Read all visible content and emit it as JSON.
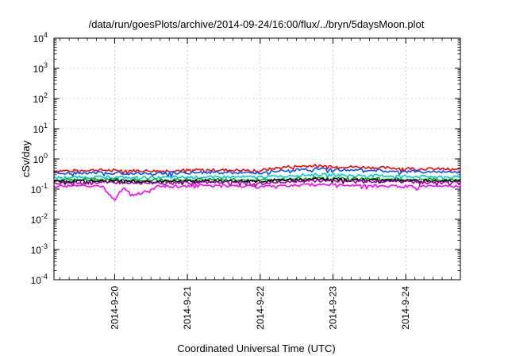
{
  "chart_data": {
    "type": "line",
    "title": "/data/run/goesPlots/archive/2014-09-24/16:00/flux/../bryn/5daysMoon.plot",
    "xlabel": "Coordinated Universal Time (UTC)",
    "ylabel": "cSv/day",
    "yscale": "log",
    "ylim": [
      0.0001,
      10000
    ],
    "xlim": [
      "2014-09-19 04:00",
      "2014-09-24 18:00"
    ],
    "grid": true,
    "x_ticks": [
      "2014-9-20",
      "2014-9-21",
      "2014-9-22",
      "2014-9-23",
      "2014-9-24"
    ],
    "y_ticks": [
      {
        "base": "10",
        "exp": "-4"
      },
      {
        "base": "10",
        "exp": "-3"
      },
      {
        "base": "10",
        "exp": "-2"
      },
      {
        "base": "10",
        "exp": "-1"
      },
      {
        "base": "10",
        "exp": "0"
      },
      {
        "base": "10",
        "exp": "1"
      },
      {
        "base": "10",
        "exp": "2"
      },
      {
        "base": "10",
        "exp": "3"
      },
      {
        "base": "10",
        "exp": "4"
      }
    ],
    "series": [
      {
        "color": "#ff0000",
        "x": [
          "2014-09-19 04:00",
          "2014-09-19 18:00",
          "2014-09-20 12:00",
          "2014-09-21 06:00",
          "2014-09-22 00:00",
          "2014-09-22 09:00",
          "2014-09-22 18:00",
          "2014-09-23 12:00",
          "2014-09-24 06:00",
          "2014-09-24 18:00"
        ],
        "y": [
          0.4,
          0.43,
          0.4,
          0.43,
          0.42,
          0.55,
          0.6,
          0.52,
          0.47,
          0.45
        ]
      },
      {
        "color": "#0055ff",
        "x": [
          "2014-09-19 04:00",
          "2014-09-19 18:00",
          "2014-09-20 12:00",
          "2014-09-21 06:00",
          "2014-09-22 00:00",
          "2014-09-22 09:00",
          "2014-09-22 18:00",
          "2014-09-23 12:00",
          "2014-09-24 06:00",
          "2014-09-24 18:00"
        ],
        "y": [
          0.33,
          0.35,
          0.33,
          0.36,
          0.35,
          0.42,
          0.46,
          0.42,
          0.38,
          0.36
        ]
      },
      {
        "color": "#00cccc",
        "x": [
          "2014-09-19 04:00",
          "2014-09-19 18:00",
          "2014-09-20 12:00",
          "2014-09-21 06:00",
          "2014-09-22 00:00",
          "2014-09-22 09:00",
          "2014-09-22 18:00",
          "2014-09-23 12:00",
          "2014-09-24 06:00",
          "2014-09-24 18:00"
        ],
        "y": [
          0.24,
          0.25,
          0.24,
          0.25,
          0.25,
          0.28,
          0.3,
          0.28,
          0.26,
          0.25
        ]
      },
      {
        "color": "#00aa00",
        "x": [
          "2014-09-19 04:00",
          "2014-09-19 18:00",
          "2014-09-20 12:00",
          "2014-09-21 06:00",
          "2014-09-22 00:00",
          "2014-09-22 09:00",
          "2014-09-22 18:00",
          "2014-09-23 12:00",
          "2014-09-24 06:00",
          "2014-09-24 18:00"
        ],
        "y": [
          0.2,
          0.21,
          0.2,
          0.21,
          0.2,
          0.22,
          0.23,
          0.22,
          0.21,
          0.2
        ]
      },
      {
        "color": "#000000",
        "x": [
          "2014-09-19 04:00",
          "2014-09-19 18:00",
          "2014-09-20 12:00",
          "2014-09-21 06:00",
          "2014-09-22 00:00",
          "2014-09-22 09:00",
          "2014-09-22 18:00",
          "2014-09-23 12:00",
          "2014-09-24 06:00",
          "2014-09-24 18:00"
        ],
        "y": [
          0.18,
          0.19,
          0.18,
          0.19,
          0.18,
          0.2,
          0.21,
          0.2,
          0.19,
          0.18
        ]
      },
      {
        "color": "#aa00aa",
        "x": [
          "2014-09-19 04:00",
          "2014-09-19 18:00",
          "2014-09-20 12:00",
          "2014-09-21 06:00",
          "2014-09-22 00:00",
          "2014-09-22 09:00",
          "2014-09-22 18:00",
          "2014-09-23 12:00",
          "2014-09-24 06:00",
          "2014-09-24 18:00"
        ],
        "y": [
          0.16,
          0.17,
          0.16,
          0.17,
          0.16,
          0.18,
          0.19,
          0.18,
          0.17,
          0.16
        ]
      },
      {
        "color": "#ff00ff",
        "x": [
          "2014-09-19 04:00",
          "2014-09-19 12:00",
          "2014-09-19 20:00",
          "2014-09-20 00:00",
          "2014-09-20 03:00",
          "2014-09-20 06:00",
          "2014-09-20 14:00",
          "2014-09-21 06:00",
          "2014-09-22 00:00",
          "2014-09-22 18:00",
          "2014-09-23 12:00",
          "2014-09-24 06:00",
          "2014-09-24 18:00"
        ],
        "y": [
          0.12,
          0.13,
          0.12,
          0.045,
          0.12,
          0.06,
          0.12,
          0.13,
          0.12,
          0.14,
          0.13,
          0.12,
          0.12
        ]
      }
    ]
  }
}
